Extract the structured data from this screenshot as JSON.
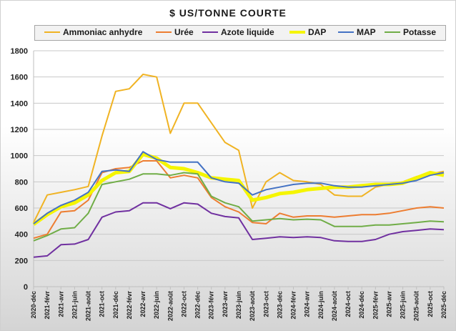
{
  "chart_data": {
    "type": "line",
    "title": "$ US/TONNE COURTE",
    "xlabel": "",
    "ylabel": "",
    "ylim": [
      0,
      1800
    ],
    "yticks": [
      0,
      200,
      400,
      600,
      800,
      1000,
      1200,
      1400,
      1600,
      1800
    ],
    "grid": true,
    "legend_position": "top",
    "x": [
      "2020-déc",
      "2021-févr",
      "2021-avr",
      "2021-juin",
      "2021-août",
      "2021-oct",
      "2021-déc",
      "2022-févr",
      "2022-avr",
      "2022-juin",
      "2022-août",
      "2022-oct",
      "2022-déc",
      "2023-févr",
      "2023-avr",
      "2023-juin",
      "2023-août",
      "2023-oct",
      "2023-déc",
      "2024-févr",
      "2024-avr",
      "2024-juin",
      "2024-août",
      "2024-oct",
      "2024-déc",
      "2025-févr",
      "2025-avr",
      "2025-juin",
      "2025-août",
      "2025-oct",
      "2025-déc"
    ],
    "series": [
      {
        "name": "Ammoniac anhydre",
        "color": "#f0b323",
        "values": [
          490,
          700,
          720,
          740,
          765,
          1150,
          1490,
          1510,
          1620,
          1600,
          1170,
          1400,
          1400,
          1250,
          1100,
          1040,
          600,
          800,
          870,
          810,
          800,
          780,
          700,
          690,
          690,
          760,
          780,
          800,
          840,
          860,
          880
        ]
      },
      {
        "name": "Urée",
        "color": "#ed7d31",
        "values": [
          370,
          400,
          570,
          580,
          660,
          870,
          900,
          910,
          960,
          960,
          830,
          850,
          830,
          680,
          610,
          570,
          490,
          480,
          560,
          530,
          540,
          540,
          530,
          540,
          550,
          550,
          560,
          580,
          600,
          610,
          600
        ]
      },
      {
        "name": "Azote liquide",
        "color": "#7030a0",
        "values": [
          225,
          235,
          320,
          325,
          360,
          530,
          570,
          580,
          640,
          640,
          595,
          640,
          630,
          560,
          535,
          525,
          360,
          370,
          380,
          375,
          380,
          375,
          350,
          345,
          345,
          360,
          400,
          420,
          430,
          440,
          435
        ]
      },
      {
        "name": "DAP",
        "color": "#f5f500",
        "values": [
          475,
          550,
          610,
          640,
          700,
          810,
          870,
          880,
          1010,
          980,
          910,
          900,
          870,
          830,
          820,
          810,
          660,
          680,
          710,
          720,
          740,
          750,
          760,
          760,
          770,
          780,
          780,
          790,
          830,
          870,
          850
        ]
      },
      {
        "name": "MAP",
        "color": "#4472c4",
        "values": [
          480,
          560,
          620,
          660,
          720,
          880,
          890,
          880,
          1030,
          970,
          950,
          950,
          950,
          830,
          800,
          790,
          700,
          740,
          760,
          780,
          790,
          790,
          770,
          760,
          760,
          770,
          780,
          790,
          810,
          850,
          870
        ]
      },
      {
        "name": "Potasse",
        "color": "#70ad47",
        "values": [
          350,
          390,
          440,
          450,
          560,
          780,
          800,
          820,
          860,
          860,
          850,
          870,
          860,
          690,
          640,
          610,
          500,
          510,
          520,
          510,
          515,
          510,
          460,
          460,
          460,
          470,
          470,
          480,
          490,
          500,
          495
        ]
      }
    ]
  }
}
